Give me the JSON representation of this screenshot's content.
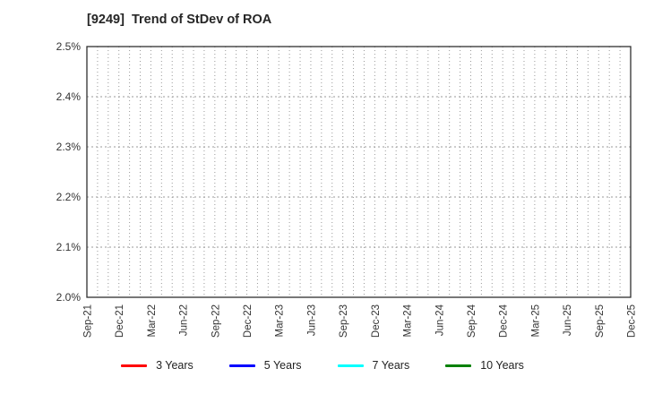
{
  "chart_data": {
    "type": "line",
    "title": "[9249]  Trend of StDev of ROA",
    "x_tick_labels": [
      "Sep-21",
      "Dec-21",
      "Mar-22",
      "Jun-22",
      "Sep-22",
      "Dec-22",
      "Mar-23",
      "Jun-23",
      "Sep-23",
      "Dec-23",
      "Mar-24",
      "Jun-24",
      "Sep-24",
      "Dec-24",
      "Mar-25",
      "Jun-25",
      "Sep-25",
      "Dec-25"
    ],
    "x_minor_gridlines_per_quarter": 3,
    "y_tick_labels": [
      "2.5%",
      "2.4%",
      "2.3%",
      "2.2%",
      "2.1%",
      "2.0%"
    ],
    "ylim": [
      2.0,
      2.5
    ],
    "y_tick_step": 0.1,
    "grid": "dotted",
    "legend_position": "bottom",
    "series": [
      {
        "name": "3 Years",
        "color": "#ff0000",
        "values": []
      },
      {
        "name": "5 Years",
        "color": "#0000ff",
        "values": []
      },
      {
        "name": "7 Years",
        "color": "#00ffff",
        "values": []
      },
      {
        "name": "10 Years",
        "color": "#008000",
        "values": []
      }
    ]
  },
  "colors": {
    "background": "#ffffff",
    "axis_border": "#2f2f2f",
    "grid": "#9a9a9a",
    "tick_text": "#333333",
    "title_text": "#262626"
  }
}
